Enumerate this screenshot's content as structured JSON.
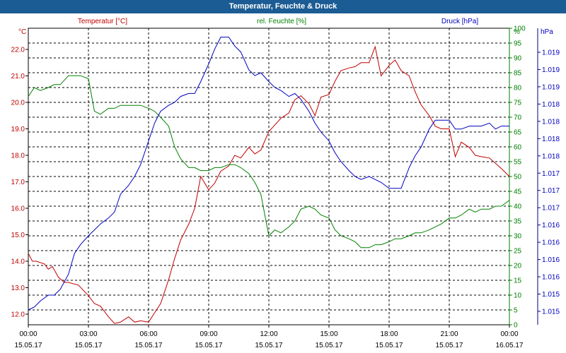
{
  "window": {
    "title": "Temperatur, Feuchte & Druck"
  },
  "chart_data": {
    "type": "line",
    "title": "Temperatur, Feuchte & Druck",
    "x_ticks": [
      {
        "time": "00:00",
        "date": "15.05.17"
      },
      {
        "time": "03:00",
        "date": "15.05.17"
      },
      {
        "time": "06:00",
        "date": "15.05.17"
      },
      {
        "time": "09:00",
        "date": "15.05.17"
      },
      {
        "time": "12:00",
        "date": "15.05.17"
      },
      {
        "time": "15:00",
        "date": "15.05.17"
      },
      {
        "time": "18:00",
        "date": "15.05.17"
      },
      {
        "time": "21:00",
        "date": "15.05.17"
      },
      {
        "time": "00:00",
        "date": "16.05.17"
      }
    ],
    "xlim": [
      0,
      24
    ],
    "grid": true,
    "axes": {
      "left": {
        "label": "Temperatur [°C]",
        "unit": "°C",
        "color": "#c00000",
        "ylim": [
          11.6,
          22.8
        ],
        "ticks": [
          "12.0",
          "13.0",
          "14.0",
          "15.0",
          "16.0",
          "17.0",
          "18.0",
          "19.0",
          "20.0",
          "21.0",
          "22.0"
        ]
      },
      "middle": {
        "label": "rel. Feuchte [%]",
        "unit": "%",
        "color": "#008000",
        "ylim": [
          0,
          100
        ],
        "ticks": [
          "0",
          "5",
          "10",
          "15",
          "20",
          "25",
          "30",
          "35",
          "40",
          "45",
          "50",
          "55",
          "60",
          "65",
          "70",
          "75",
          "80",
          "85",
          "90",
          "95",
          "100"
        ]
      },
      "right": {
        "label": "Druck [hPa]",
        "unit": "hPa",
        "color": "#0000c0",
        "ticks": [
          "1.015",
          "1.015",
          "1.016",
          "1.016",
          "1.016",
          "1.016",
          "1.017",
          "1.017",
          "1.017",
          "1.018",
          "1.018",
          "1.018",
          "1.018",
          "1.019",
          "1.019",
          "1.019"
        ]
      }
    },
    "series": [
      {
        "name": "Temperatur [°C]",
        "axis": "left",
        "color": "#c00000",
        "x": [
          0,
          0.2,
          0.4,
          0.8,
          1.0,
          1.2,
          1.5,
          1.8,
          2.0,
          2.5,
          3.0,
          3.3,
          3.6,
          4.0,
          4.3,
          4.6,
          5.0,
          5.3,
          5.6,
          6.0,
          6.3,
          6.6,
          7.0,
          7.3,
          7.6,
          8.0,
          8.3,
          8.6,
          9.0,
          9.3,
          9.6,
          10.0,
          10.3,
          10.6,
          11.0,
          11.3,
          11.6,
          12.0,
          12.3,
          12.6,
          13.0,
          13.3,
          13.6,
          14.0,
          14.3,
          14.6,
          15.0,
          15.3,
          15.6,
          16.0,
          16.3,
          16.6,
          17.0,
          17.3,
          17.6,
          18.0,
          18.3,
          18.6,
          19.0,
          19.3,
          19.6,
          20.0,
          20.3,
          20.6,
          21.0,
          21.3,
          21.6,
          22.0,
          22.3,
          22.6,
          23.0,
          23.3,
          23.6,
          24.0
        ],
        "values": [
          14.3,
          14.0,
          14.0,
          13.9,
          13.7,
          13.8,
          13.4,
          13.2,
          13.2,
          13.1,
          12.7,
          12.4,
          12.3,
          11.9,
          11.65,
          11.7,
          11.9,
          11.7,
          11.75,
          11.7,
          12.05,
          12.4,
          13.3,
          14.1,
          14.8,
          15.4,
          16.0,
          17.2,
          16.7,
          16.95,
          17.4,
          17.6,
          18.0,
          17.9,
          18.3,
          18.05,
          18.2,
          18.9,
          19.15,
          19.4,
          19.6,
          20.1,
          20.25,
          19.95,
          19.5,
          20.2,
          20.3,
          20.8,
          21.2,
          21.3,
          21.35,
          21.5,
          21.5,
          22.1,
          21.0,
          21.4,
          21.6,
          21.2,
          21.0,
          20.4,
          19.9,
          19.5,
          19.1,
          19.0,
          19.0,
          17.95,
          18.5,
          18.3,
          18.0,
          17.95,
          17.9,
          17.7,
          17.5,
          17.2
        ]
      },
      {
        "name": "rel. Feuchte [%]",
        "axis": "middle",
        "color": "#008000",
        "x": [
          0,
          0.3,
          0.6,
          1.0,
          1.3,
          1.6,
          2.0,
          2.3,
          2.6,
          3.0,
          3.3,
          3.6,
          4.0,
          4.3,
          4.6,
          5.0,
          5.3,
          5.6,
          6.0,
          6.3,
          6.6,
          7.0,
          7.3,
          7.6,
          8.0,
          8.3,
          8.6,
          9.0,
          9.3,
          9.6,
          10.0,
          10.3,
          10.6,
          11.0,
          11.3,
          11.6,
          12.0,
          12.3,
          12.6,
          13.0,
          13.3,
          13.6,
          14.0,
          14.3,
          14.6,
          15.0,
          15.3,
          15.6,
          16.0,
          16.3,
          16.6,
          17.0,
          17.3,
          17.6,
          18.0,
          18.3,
          18.6,
          19.0,
          19.3,
          19.6,
          20.0,
          20.3,
          20.6,
          21.0,
          21.3,
          21.6,
          22.0,
          22.3,
          22.6,
          23.0,
          23.3,
          23.6,
          24.0
        ],
        "values": [
          77,
          80,
          79,
          80,
          81,
          81,
          84,
          84,
          84,
          83,
          72,
          71,
          73,
          73,
          74,
          74,
          74,
          74,
          73,
          72,
          70,
          67,
          60,
          56,
          53,
          53,
          52,
          52,
          53,
          53,
          54,
          54,
          53,
          51,
          48,
          44,
          30,
          32,
          31,
          33,
          35,
          39,
          40,
          39,
          37,
          36,
          32,
          30,
          29,
          28,
          26,
          26,
          27,
          27,
          28,
          29,
          29,
          30,
          31,
          31,
          32,
          33,
          34,
          36,
          36,
          37,
          39,
          38,
          39,
          39,
          40,
          40,
          42
        ]
      },
      {
        "name": "Druck [hPa]",
        "axis": "right",
        "color": "#0000c0",
        "y_scale": "axis_fraction",
        "x": [
          0,
          0.3,
          0.6,
          1.0,
          1.3,
          1.6,
          2.0,
          2.3,
          2.6,
          3.0,
          3.3,
          3.6,
          4.0,
          4.3,
          4.6,
          5.0,
          5.3,
          5.6,
          6.0,
          6.3,
          6.6,
          7.0,
          7.3,
          7.6,
          8.0,
          8.3,
          8.6,
          9.0,
          9.3,
          9.6,
          10.0,
          10.3,
          10.6,
          11.0,
          11.3,
          11.6,
          12.0,
          12.3,
          12.6,
          13.0,
          13.3,
          13.6,
          14.0,
          14.3,
          14.6,
          15.0,
          15.3,
          15.6,
          16.0,
          16.3,
          16.6,
          17.0,
          17.3,
          17.6,
          18.0,
          18.3,
          18.6,
          19.0,
          19.3,
          19.6,
          20.0,
          20.3,
          20.6,
          21.0,
          21.3,
          21.6,
          22.0,
          22.3,
          22.6,
          23.0,
          23.3,
          23.6,
          24.0
        ],
        "values": [
          0.05,
          0.06,
          0.08,
          0.1,
          0.1,
          0.12,
          0.17,
          0.24,
          0.27,
          0.3,
          0.32,
          0.34,
          0.36,
          0.38,
          0.44,
          0.47,
          0.5,
          0.54,
          0.62,
          0.68,
          0.72,
          0.74,
          0.75,
          0.77,
          0.78,
          0.78,
          0.82,
          0.88,
          0.93,
          0.97,
          0.97,
          0.94,
          0.92,
          0.86,
          0.84,
          0.85,
          0.82,
          0.8,
          0.79,
          0.77,
          0.78,
          0.76,
          0.72,
          0.68,
          0.65,
          0.62,
          0.58,
          0.55,
          0.52,
          0.5,
          0.49,
          0.5,
          0.49,
          0.48,
          0.46,
          0.46,
          0.46,
          0.53,
          0.57,
          0.6,
          0.66,
          0.69,
          0.69,
          0.69,
          0.66,
          0.66,
          0.67,
          0.67,
          0.67,
          0.68,
          0.66,
          0.67,
          0.67
        ]
      }
    ]
  }
}
